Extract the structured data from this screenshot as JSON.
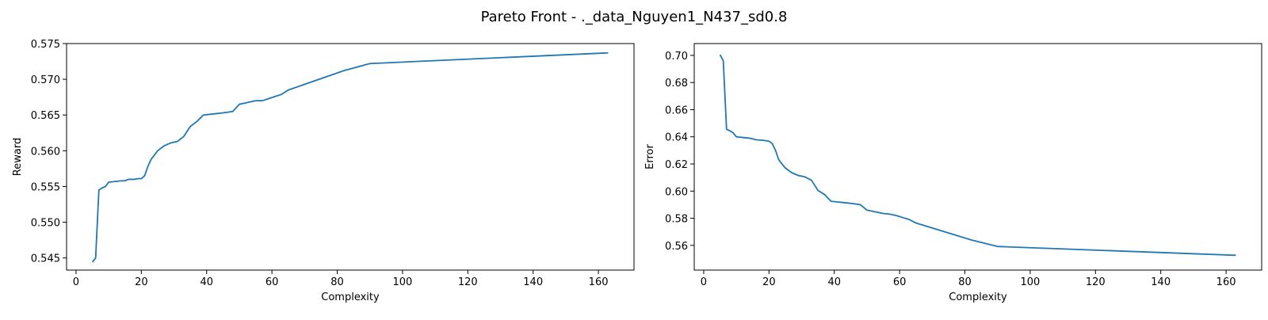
{
  "figure": {
    "title": "Pareto Front - ._data_Nguyen1_N437_sd0.8"
  },
  "colors": {
    "line": "#1f77b4"
  },
  "chart_data": [
    {
      "type": "line",
      "xlabel": "Complexity",
      "ylabel": "Reward",
      "xlim": [
        -2.9,
        170.9
      ],
      "ylim": [
        0.5433,
        0.575
      ],
      "xticks": [
        0,
        20,
        40,
        60,
        80,
        100,
        120,
        140,
        160
      ],
      "yticks": [
        0.545,
        0.55,
        0.555,
        0.56,
        0.565,
        0.57,
        0.575
      ],
      "ytick_labels": [
        "0.545",
        "0.550",
        "0.555",
        "0.560",
        "0.565",
        "0.570",
        "0.575"
      ],
      "grid": false,
      "series": [
        {
          "x": [
            5,
            6,
            7,
            8,
            9,
            10,
            12,
            14,
            15,
            16,
            17,
            18,
            19,
            20,
            21,
            22,
            23,
            25,
            27,
            29,
            31,
            33,
            35,
            37,
            39,
            41,
            43,
            45,
            48,
            50,
            52,
            55,
            57,
            59,
            61,
            63,
            65,
            82,
            90,
            163
          ],
          "y": [
            0.5444,
            0.545,
            0.5545,
            0.5548,
            0.555,
            0.5556,
            0.5557,
            0.5558,
            0.5558,
            0.556,
            0.556,
            0.556,
            0.5561,
            0.5561,
            0.5565,
            0.5578,
            0.5588,
            0.56,
            0.5607,
            0.5611,
            0.5613,
            0.562,
            0.5634,
            0.5641,
            0.565,
            0.5651,
            0.5652,
            0.5653,
            0.5655,
            0.5665,
            0.5667,
            0.567,
            0.567,
            0.5673,
            0.5676,
            0.5679,
            0.5685,
            0.5712,
            0.5722,
            0.5737
          ]
        }
      ]
    },
    {
      "type": "line",
      "xlabel": "Complexity",
      "ylabel": "Error",
      "xlim": [
        -2.9,
        170.9
      ],
      "ylim": [
        0.5418,
        0.7087
      ],
      "xticks": [
        0,
        20,
        40,
        60,
        80,
        100,
        120,
        140,
        160
      ],
      "yticks": [
        0.56,
        0.58,
        0.6,
        0.62,
        0.64,
        0.66,
        0.68,
        0.7
      ],
      "ytick_labels": [
        "0.56",
        "0.58",
        "0.60",
        "0.62",
        "0.64",
        "0.66",
        "0.68",
        "0.70"
      ],
      "grid": false,
      "series": [
        {
          "x": [
            5,
            6,
            7,
            8,
            9,
            10,
            12,
            14,
            15,
            16,
            18,
            20,
            21,
            22,
            23,
            25,
            27,
            29,
            31,
            33,
            35,
            37,
            39,
            41,
            43,
            45,
            48,
            50,
            52,
            55,
            57,
            59,
            61,
            63,
            65,
            82,
            90,
            163
          ],
          "y": [
            0.7005,
            0.696,
            0.6455,
            0.6445,
            0.643,
            0.64,
            0.6395,
            0.639,
            0.6385,
            0.6378,
            0.6375,
            0.6368,
            0.635,
            0.63,
            0.623,
            0.617,
            0.6135,
            0.6115,
            0.6105,
            0.608,
            0.6005,
            0.5975,
            0.5925,
            0.592,
            0.5915,
            0.591,
            0.59,
            0.586,
            0.585,
            0.5835,
            0.583,
            0.582,
            0.5805,
            0.579,
            0.5765,
            0.564,
            0.5592,
            0.5527
          ]
        }
      ]
    }
  ]
}
